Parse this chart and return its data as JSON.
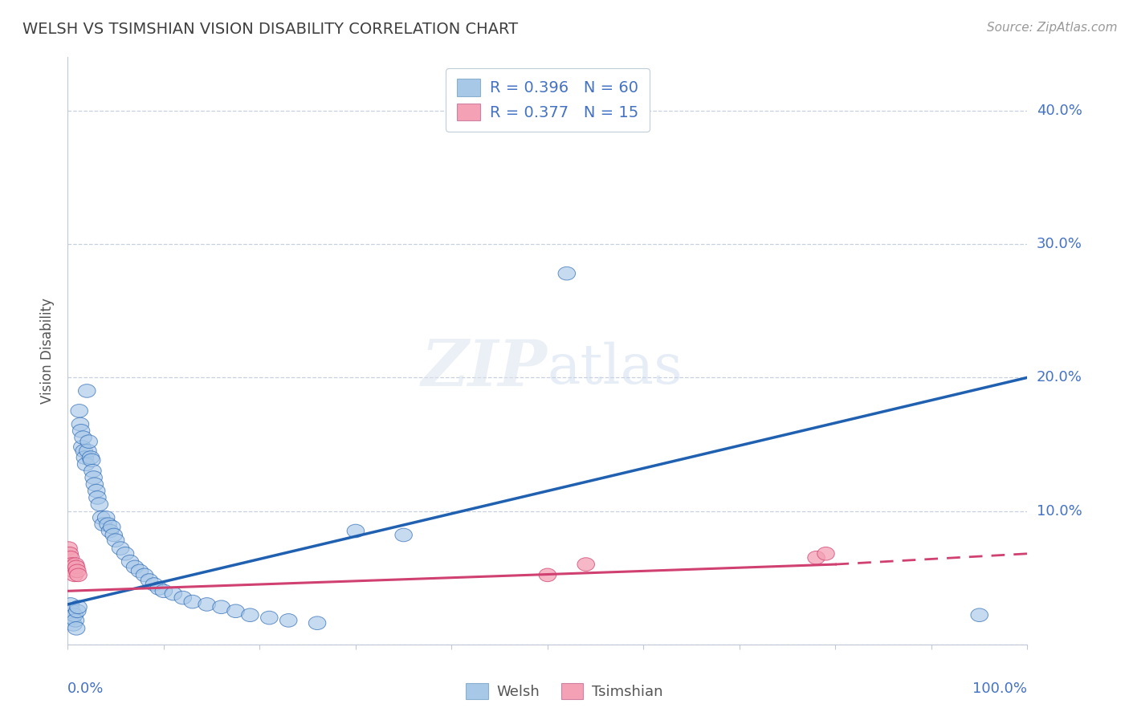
{
  "title": "WELSH VS TSIMSHIAN VISION DISABILITY CORRELATION CHART",
  "source": "Source: ZipAtlas.com",
  "ylabel": "Vision Disability",
  "welsh_R": 0.396,
  "welsh_N": 60,
  "tsimshian_R": 0.377,
  "tsimshian_N": 15,
  "welsh_color": "#a8c8e8",
  "tsimshian_color": "#f4a0b5",
  "welsh_line_color": "#2060b0",
  "tsimshian_line_color": "#d04070",
  "background_color": "#ffffff",
  "grid_color": "#c8d0e0",
  "title_color": "#404040",
  "tick_color": "#4472c4",
  "welsh_x": [
    0.003,
    0.004,
    0.005,
    0.006,
    0.007,
    0.008,
    0.009,
    0.01,
    0.011,
    0.012,
    0.013,
    0.014,
    0.015,
    0.016,
    0.017,
    0.018,
    0.019,
    0.02,
    0.021,
    0.022,
    0.024,
    0.025,
    0.026,
    0.027,
    0.028,
    0.03,
    0.031,
    0.033,
    0.035,
    0.037,
    0.04,
    0.042,
    0.044,
    0.046,
    0.048,
    0.05,
    0.055,
    0.06,
    0.065,
    0.07,
    0.075,
    0.08,
    0.085,
    0.09,
    0.095,
    0.1,
    0.11,
    0.12,
    0.13,
    0.145,
    0.16,
    0.175,
    0.19,
    0.21,
    0.23,
    0.26,
    0.3,
    0.35,
    0.52,
    0.95
  ],
  "welsh_y": [
    0.03,
    0.025,
    0.02,
    0.015,
    0.022,
    0.018,
    0.012,
    0.025,
    0.028,
    0.175,
    0.165,
    0.16,
    0.148,
    0.155,
    0.145,
    0.14,
    0.135,
    0.19,
    0.145,
    0.152,
    0.14,
    0.138,
    0.13,
    0.125,
    0.12,
    0.115,
    0.11,
    0.105,
    0.095,
    0.09,
    0.095,
    0.09,
    0.085,
    0.088,
    0.082,
    0.078,
    0.072,
    0.068,
    0.062,
    0.058,
    0.055,
    0.052,
    0.048,
    0.045,
    0.042,
    0.04,
    0.038,
    0.035,
    0.032,
    0.03,
    0.028,
    0.025,
    0.022,
    0.02,
    0.018,
    0.016,
    0.085,
    0.082,
    0.278,
    0.022
  ],
  "tsimshian_x": [
    0.001,
    0.002,
    0.003,
    0.004,
    0.005,
    0.006,
    0.007,
    0.008,
    0.009,
    0.01,
    0.011,
    0.5,
    0.54,
    0.78,
    0.79
  ],
  "tsimshian_y": [
    0.072,
    0.068,
    0.065,
    0.06,
    0.058,
    0.055,
    0.052,
    0.06,
    0.058,
    0.055,
    0.052,
    0.052,
    0.06,
    0.065,
    0.068
  ],
  "welsh_line": [
    0.0,
    0.03,
    1.0,
    0.2
  ],
  "tsimshian_solid": [
    0.0,
    0.04,
    0.8,
    0.06
  ],
  "tsimshian_dashed": [
    0.8,
    0.06,
    1.0,
    0.068
  ],
  "xlim": [
    0.0,
    1.0
  ],
  "ylim": [
    0.0,
    0.44
  ],
  "yticks": [
    0.0,
    0.1,
    0.2,
    0.3,
    0.4
  ],
  "ytick_labels": [
    "",
    "10.0%",
    "20.0%",
    "30.0%",
    "40.0%"
  ]
}
